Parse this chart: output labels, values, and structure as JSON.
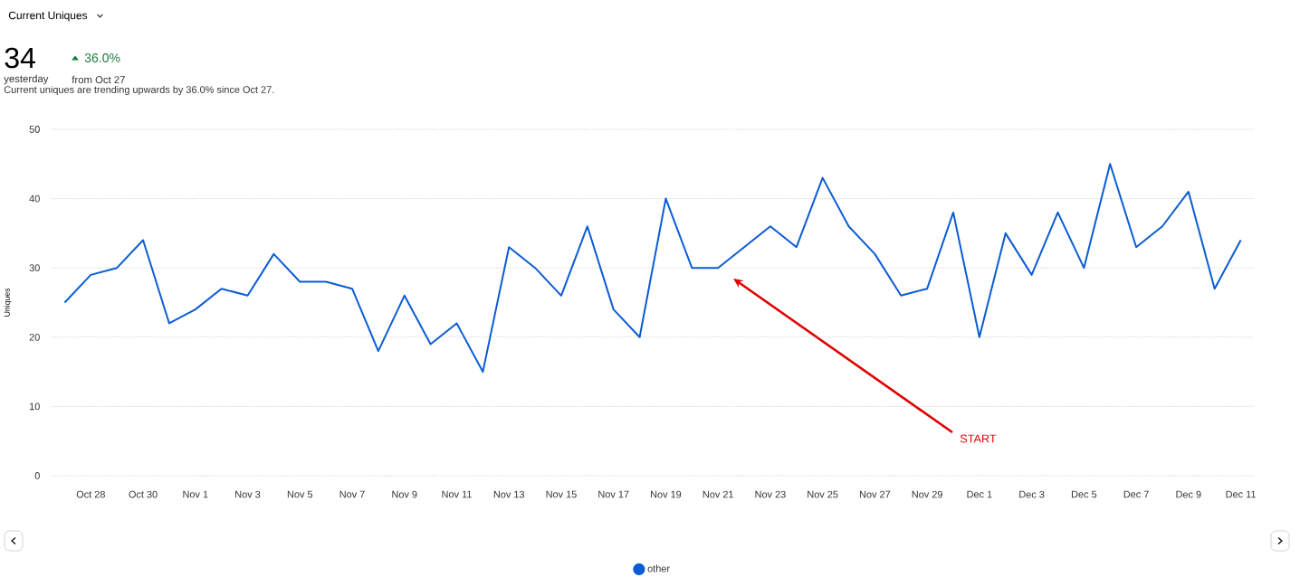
{
  "chart_data": {
    "type": "line",
    "title": "Current Uniques",
    "subtitle": "Current uniques are trending upwards by 36.0% since Oct 27.",
    "ylabel": "Uniques",
    "categories": [
      null,
      "Oct 28",
      null,
      "Oct 30",
      null,
      "Nov 1",
      null,
      "Nov 3",
      null,
      "Nov 5",
      null,
      "Nov 7",
      null,
      "Nov 9",
      null,
      "Nov 11",
      null,
      "Nov 13",
      null,
      "Nov 15",
      null,
      "Nov 17",
      null,
      "Nov 19",
      null,
      "Nov 21",
      null,
      "Nov 23",
      null,
      "Nov 25",
      null,
      "Nov 27",
      null,
      "Nov 29",
      null,
      "Dec 1",
      null,
      "Dec 3",
      null,
      "Dec 5",
      null,
      "Dec 7",
      null,
      "Dec 9",
      null,
      "Dec 11"
    ],
    "series": [
      {
        "name": "other",
        "color": "#0b5cd5",
        "values": [
          25,
          29,
          30,
          34,
          22,
          24,
          27,
          26,
          32,
          28,
          28,
          27,
          18,
          26,
          19,
          22,
          15,
          33,
          30,
          26,
          36,
          24,
          20,
          40,
          30,
          30,
          33,
          36,
          33,
          43,
          36,
          32,
          26,
          27,
          38,
          20,
          35,
          29,
          38,
          30,
          45,
          33,
          36,
          41,
          27,
          34
        ]
      }
    ],
    "ylim": [
      0,
      50
    ],
    "yticks": [
      0,
      10,
      20,
      30,
      40,
      50
    ],
    "grid": "y",
    "legend": "bottom",
    "annotations": [
      "34",
      "36.0%",
      "yesterday",
      "from Oct 27",
      "START"
    ]
  }
}
